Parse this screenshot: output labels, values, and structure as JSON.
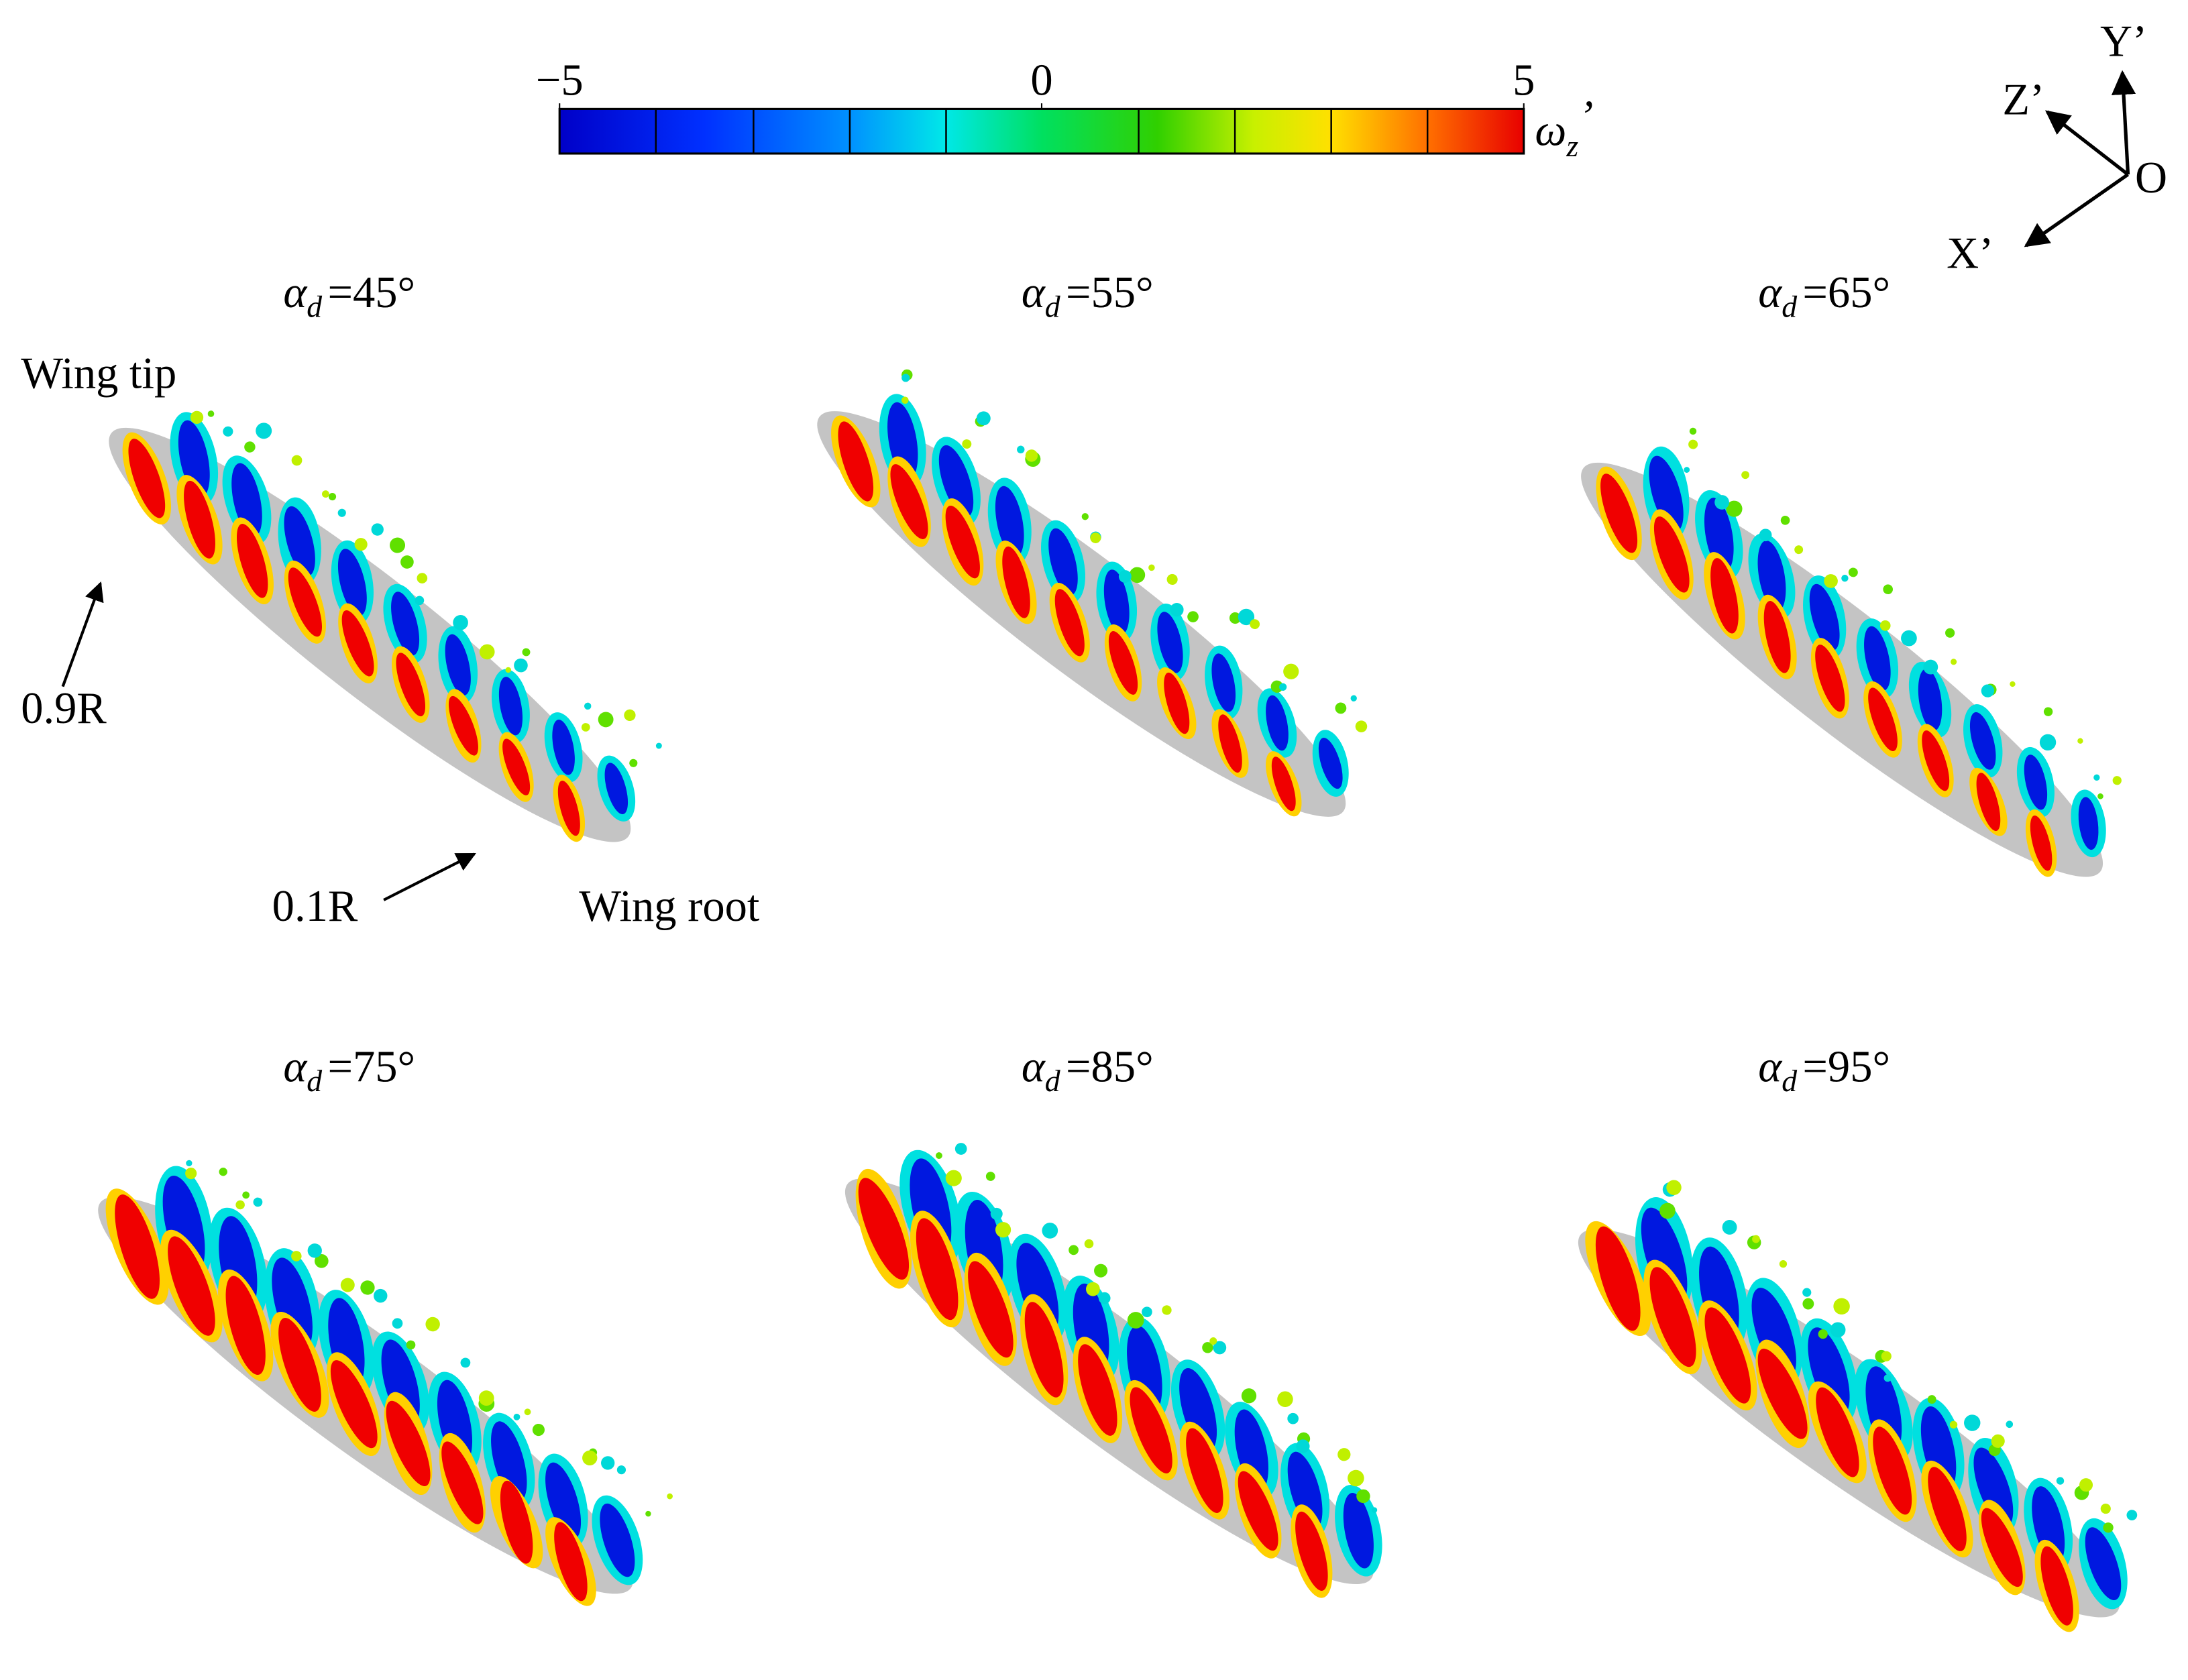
{
  "colorbar": {
    "lim": [
      -5,
      5
    ],
    "ticks": [
      {
        "value": -5,
        "label": "−5"
      },
      0,
      5
    ],
    "label": {
      "symbol": "ω",
      "subscript": "z",
      "prime": "’"
    }
  },
  "axes": {
    "y": "Y’",
    "z": "Z’",
    "x": "X’",
    "origin": "O"
  },
  "annotations": {
    "tip": "Wing tip",
    "root": "Wing root",
    "outer": "0.9R",
    "inner": "0.1R"
  },
  "panels": [
    {
      "symbol": "α",
      "subscript": "d",
      "value": "=45°"
    },
    {
      "symbol": "α",
      "subscript": "d",
      "value": "=55°"
    },
    {
      "symbol": "α",
      "subscript": "d",
      "value": "=65°"
    },
    {
      "symbol": "α",
      "subscript": "d",
      "value": "=75°"
    },
    {
      "symbol": "α",
      "subscript": "d",
      "value": "=85°"
    },
    {
      "symbol": "α",
      "subscript": "d",
      "value": "=95°"
    }
  ]
}
